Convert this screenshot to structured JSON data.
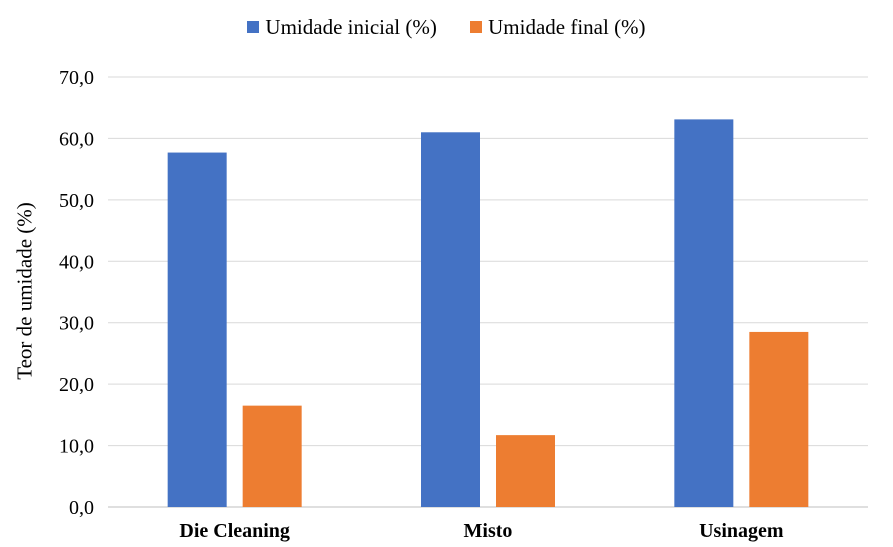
{
  "chart_data": {
    "type": "bar",
    "categories": [
      "Die Cleaning",
      "Misto",
      "Usinagem"
    ],
    "series": [
      {
        "name": "Umidade inicial (%)",
        "values": [
          57.7,
          61.0,
          63.1
        ],
        "color": "#4472C4"
      },
      {
        "name": "Umidade final (%)",
        "values": [
          16.5,
          11.7,
          28.5
        ],
        "color": "#ED7D31"
      }
    ],
    "title": "",
    "xlabel": "",
    "ylabel": "Teor de umidade (%)",
    "ylim": [
      0,
      70
    ],
    "yticks": [
      "0,0",
      "10,0",
      "20,0",
      "30,0",
      "40,0",
      "50,0",
      "60,0",
      "70,0"
    ],
    "grid": true,
    "legend_position": "top-center"
  }
}
